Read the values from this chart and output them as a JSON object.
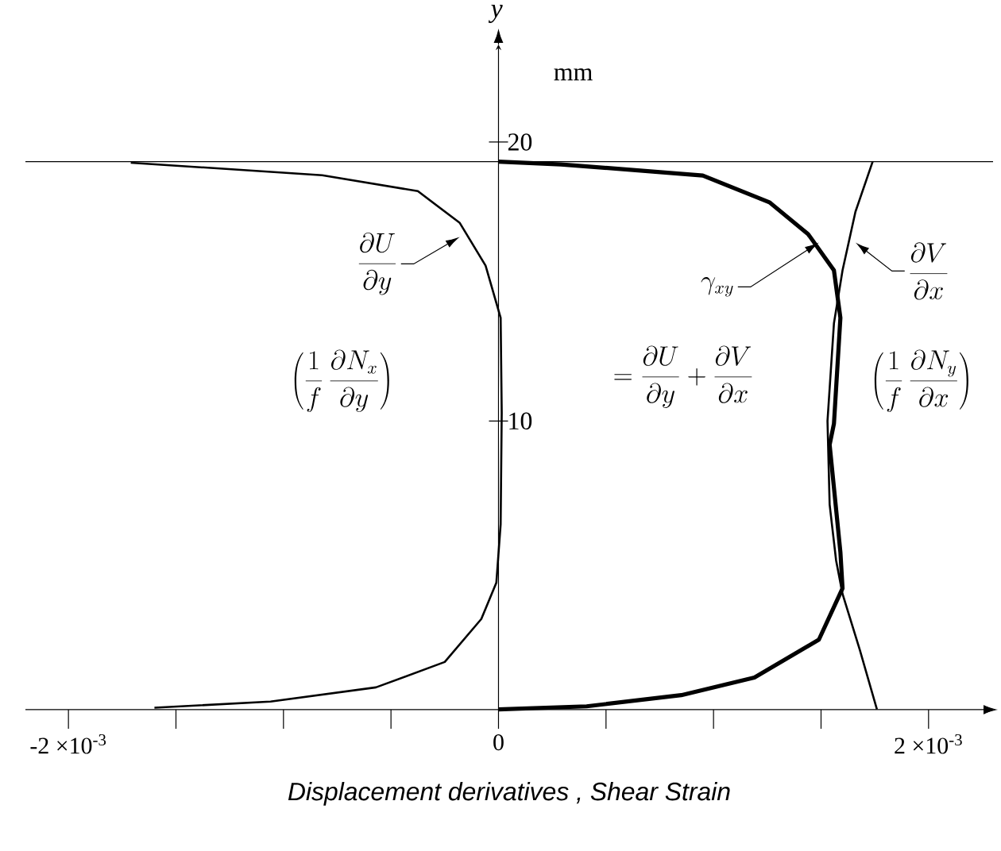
{
  "chart_data": {
    "type": "line",
    "xlabel": "Displacement derivatives , Shear Strain",
    "ylabel": "y",
    "xlim": [
      -0.0022,
      0.0023
    ],
    "ylim": [
      -0.35,
      23.5
    ],
    "xticks": [
      {
        "value": -0.002,
        "label": "-2 ×10$^{-3}$"
      },
      {
        "value": -0.0015,
        "label": null
      },
      {
        "value": -0.001,
        "label": null
      },
      {
        "value": -0.0005,
        "label": null
      },
      0,
      {
        "value": 0.0005,
        "label": null
      },
      {
        "value": 0.001,
        "label": null
      },
      {
        "value": 0.0015,
        "label": null
      },
      {
        "value": 0.002,
        "label": "2 ×10$^{-3}$"
      }
    ],
    "yticks": [
      10,
      20
    ],
    "ref_lines": [
      {
        "axis": "y",
        "value": 19.3,
        "color": "#000000"
      }
    ],
    "series": [
      {
        "color": "#000000",
        "x": [
          -0.00171,
          -0.00082,
          -0.000375,
          -0.00018,
          -6e-05,
          1e-05,
          1.5e-05,
          1e-05,
          -1e-05,
          -8e-05,
          -0.00025,
          -0.00057,
          -0.00106,
          -0.0016
        ],
        "values": [
          19.26,
          18.81,
          18.24,
          17.1,
          15.57,
          13.7,
          10.3,
          6.3,
          4.2,
          2.9,
          1.36,
          0.45,
          -0.06,
          -0.28
        ]
      },
      {
        "color": "#000000",
        "x": [
          0,
          0.00029,
          0.00095,
          0.00126,
          0.00144,
          0.00156,
          0.00159,
          0.00156,
          0.00154,
          0.00159,
          0.0016,
          0.00149,
          0.00119,
          0.00085,
          0.00041,
          0
        ],
        "values": [
          19.3,
          19.2,
          18.8,
          17.84,
          16.7,
          15.4,
          13.7,
          9.9,
          9.15,
          5.3,
          4.0,
          2.16,
          0.8,
          0.17,
          -0.23,
          -0.34
        ]
      },
      {
        "color": "#000000",
        "x": [
          0.00174,
          0.00166,
          0.0016,
          0.00156,
          0.00153,
          0.00154,
          0.00157,
          0.0016,
          0.00168,
          0.00176
        ],
        "values": [
          19.3,
          17.5,
          15.4,
          13.5,
          10,
          7,
          5,
          3.8,
          1.8,
          -0.34
        ]
      }
    ],
    "annotations": [
      {
        "text": "\\frac{\\partial U}{\\partial y}",
        "x": -0.00018,
        "y": 16.6
      },
      "\\left(\\frac{1}{f}\\,\\frac{\\partial N_x}{\\partial y}\\right)",
      {
        "text": "\\gamma_{xy}",
        "x": 0.00149,
        "y": 16.4
      },
      "= \\frac{\\partial U}{\\partial y} + \\frac{\\partial V}{\\partial x}",
      {
        "text": "\\frac{\\partial V}{\\partial x}",
        "x": 0.00166,
        "y": 16.4
      },
      "\\left(\\frac{1}{f}\\,\\frac{\\partial N_y}{\\partial x}\\right)",
      "mm"
    ]
  }
}
